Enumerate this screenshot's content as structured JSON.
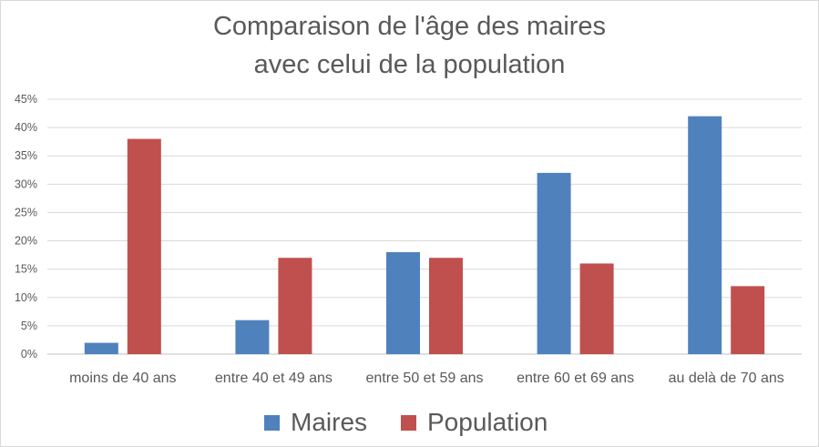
{
  "chart_data": {
    "type": "bar",
    "title": [
      "Comparaison de l'âge des maires",
      "avec celui de la population"
    ],
    "categories": [
      "moins de 40 ans",
      "entre 40 et 49 ans",
      "entre 50 et 59 ans",
      "entre 60 et 69 ans",
      "au delà de 70 ans"
    ],
    "series": [
      {
        "name": "Maires",
        "color": "#4f81bd",
        "values": [
          2,
          6,
          18,
          32,
          42
        ]
      },
      {
        "name": "Population",
        "color": "#c0504d",
        "values": [
          38,
          17,
          17,
          16,
          12
        ]
      }
    ],
    "ylim": [
      0,
      45
    ],
    "yticks": [
      "0%",
      "5%",
      "10%",
      "15%",
      "20%",
      "25%",
      "30%",
      "35%",
      "40%",
      "45%"
    ],
    "xlabel": "",
    "ylabel": "",
    "grid": true,
    "legend": "bottom"
  }
}
